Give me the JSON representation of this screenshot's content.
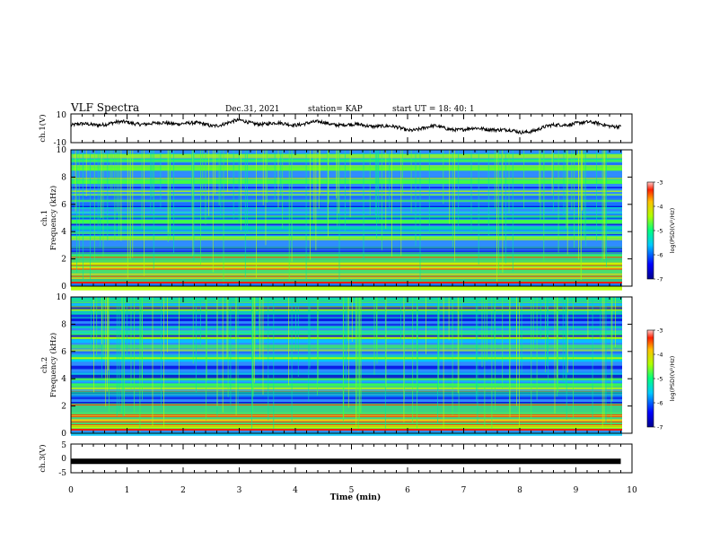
{
  "header": {
    "title": "VLF Spectra",
    "date": "Dec.31, 2021",
    "station": "station= KAP",
    "start": "start  UT =   18: 40: 1"
  },
  "chart_data": [
    {
      "type": "line",
      "panel": "ch1-waveform",
      "ylabel": "ch.1(V)",
      "ylim": [
        -10,
        10
      ],
      "yticks": [
        "10",
        "-10"
      ],
      "x_minutes": [
        0,
        0.5,
        1,
        1.5,
        2,
        2.5,
        3,
        3.5,
        4,
        4.5,
        5,
        5.5,
        6,
        6.5,
        7,
        7.5,
        8,
        8.5,
        9,
        9.5,
        9.8
      ],
      "y_volts": [
        2,
        3,
        4,
        3,
        4,
        2,
        5,
        3,
        3,
        4,
        2,
        2,
        -1,
        1,
        -1,
        0,
        -3,
        1,
        4,
        3,
        1
      ],
      "series_color": "#000000"
    },
    {
      "type": "heatmap",
      "panel": "ch1-spectrogram",
      "ylabel": "ch.1\nFrequency (kHz)",
      "ylim": [
        0,
        10
      ],
      "yticks": [
        "0",
        "2",
        "4",
        "6",
        "8",
        "10"
      ],
      "colorbar": {
        "label": "log(PSD)(V²/Hz)",
        "range": [
          -7,
          -3
        ],
        "ticks": [
          "-3",
          "-4",
          "-5",
          "-6",
          "-7"
        ]
      }
    },
    {
      "type": "heatmap",
      "panel": "ch2-spectrogram",
      "ylabel": "ch.2\nFrequency (kHz)",
      "ylim": [
        0,
        10
      ],
      "yticks": [
        "0",
        "2",
        "4",
        "6",
        "8",
        "10"
      ],
      "colorbar": {
        "label": "log(PSD)(V²/Hz)",
        "range": [
          -7,
          -3
        ],
        "ticks": [
          "-3",
          "-4",
          "-5",
          "-6",
          "-7"
        ]
      }
    },
    {
      "type": "line",
      "panel": "ch3-waveform",
      "ylabel": "ch.3(V)",
      "ylim": [
        -5,
        5
      ],
      "yticks": [
        "5",
        "0",
        "-5"
      ],
      "x_minutes": [
        0,
        9.8
      ],
      "y_volts": [
        -1,
        -1
      ],
      "series_color": "#000000"
    }
  ],
  "xaxis": {
    "label": "Time (min)",
    "xlim": [
      0,
      10
    ],
    "ticks": [
      "0",
      "1",
      "2",
      "3",
      "4",
      "5",
      "6",
      "7",
      "8",
      "9",
      "10"
    ]
  }
}
